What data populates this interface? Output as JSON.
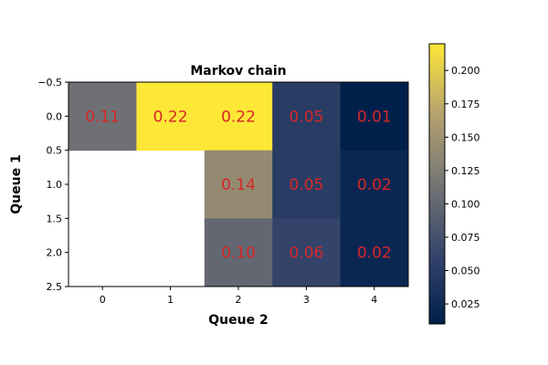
{
  "chart_data": {
    "type": "heatmap",
    "title": "Markov chain",
    "xlabel": "Queue 2",
    "ylabel": "Queue 1",
    "x_ticks": [
      "0",
      "1",
      "2",
      "3",
      "4"
    ],
    "y_ticks": [
      "−0.5",
      "0.0",
      "0.5",
      "1.0",
      "1.5",
      "2.0",
      "2.5"
    ],
    "xlim": [
      -0.5,
      4.5
    ],
    "ylim": [
      2.5,
      -0.5
    ],
    "colormap": "cividis",
    "vmin": 0.01,
    "vmax": 0.22,
    "grid": false,
    "rows": 3,
    "cols": 5,
    "values": [
      [
        0.11,
        0.22,
        0.22,
        0.05,
        0.01
      ],
      [
        null,
        null,
        0.14,
        0.05,
        0.02
      ],
      [
        null,
        null,
        0.1,
        0.06,
        0.02
      ]
    ],
    "cell_labels": [
      [
        "0.11",
        "0.22",
        "0.22",
        "0.05",
        "0.01"
      ],
      [
        null,
        null,
        "0.14",
        "0.05",
        "0.02"
      ],
      [
        null,
        null,
        "0.10",
        "0.06",
        "0.02"
      ]
    ],
    "cell_label_color": "#d62728",
    "colorbar_ticks": [
      "0.025",
      "0.050",
      "0.075",
      "0.100",
      "0.125",
      "0.150",
      "0.175",
      "0.200"
    ],
    "colorbar_tick_values": [
      0.025,
      0.05,
      0.075,
      0.1,
      0.125,
      0.15,
      0.175,
      0.2
    ]
  }
}
